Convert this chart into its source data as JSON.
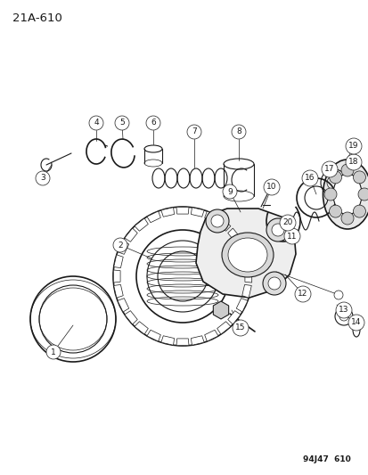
{
  "title": "21A-610",
  "footer": "94J47  610",
  "bg_color": "#ffffff",
  "line_color": "#1a1a1a",
  "title_fontsize": 9.5,
  "footer_fontsize": 6.5,
  "label_fontsize": 6.5,
  "fig_w": 4.14,
  "fig_h": 5.33,
  "dpi": 100,
  "xlim": [
    0,
    414
  ],
  "ylim": [
    0,
    533
  ]
}
